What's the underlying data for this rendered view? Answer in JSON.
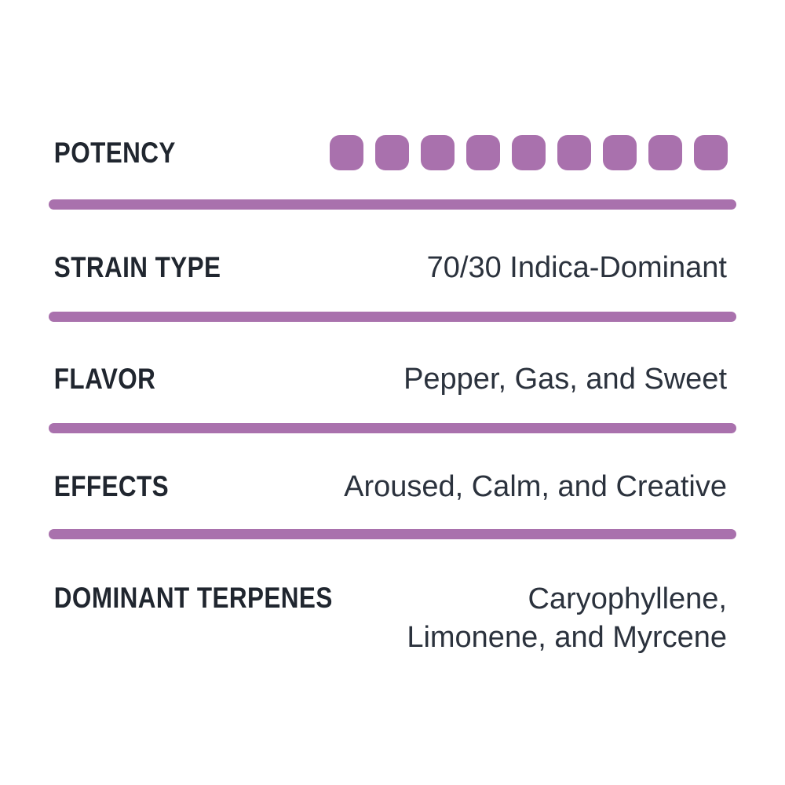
{
  "card": {
    "background": "#ffffff",
    "accent_color": "#a971ad",
    "label_color": "#20262f",
    "value_color": "#2b323d"
  },
  "potency": {
    "label": "POTENCY",
    "filled_dots": 9,
    "total_dots": 9
  },
  "rows": [
    {
      "label": "STRAIN TYPE",
      "value": "70/30 Indica-Dominant"
    },
    {
      "label": "FLAVOR",
      "value": "Pepper, Gas, and Sweet"
    },
    {
      "label": "EFFECTS",
      "value": "Aroused, Calm, and Creative"
    },
    {
      "label": "DOMINANT TERPENES",
      "value": "Caryophyllene, Limonene, and Myrcene"
    }
  ]
}
